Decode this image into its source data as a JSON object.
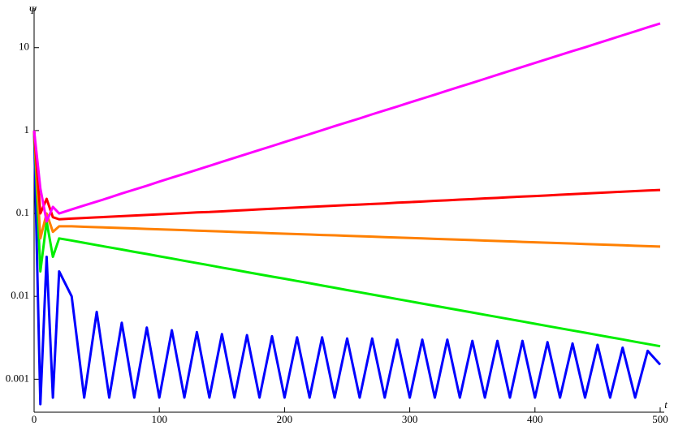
{
  "chart_data": {
    "type": "line",
    "y_label": "Ψ",
    "x_label": "t",
    "log_y": true,
    "xlim": [
      0,
      500
    ],
    "ylim": [
      0.0004,
      30
    ],
    "xticks": [
      0,
      100,
      200,
      300,
      400,
      500
    ],
    "yticks": [
      0.001,
      0.01,
      0.1,
      1,
      10
    ],
    "x": [
      0,
      5,
      10,
      15,
      20,
      30,
      40,
      50,
      60,
      70,
      80,
      90,
      100,
      110,
      120,
      130,
      140,
      150,
      160,
      170,
      180,
      190,
      200,
      210,
      220,
      230,
      240,
      250,
      260,
      270,
      280,
      290,
      300,
      310,
      320,
      330,
      340,
      350,
      360,
      370,
      380,
      390,
      400,
      410,
      420,
      430,
      440,
      450,
      460,
      470,
      480,
      490,
      500
    ],
    "series": [
      {
        "color": "#0000ff",
        "values": [
          1,
          0.0005,
          0.03,
          0.0006,
          0.02,
          0.01,
          0.0006,
          0.0065,
          0.0006,
          0.0048,
          0.0006,
          0.0042,
          0.0006,
          0.0039,
          0.0006,
          0.0037,
          0.0006,
          0.0035,
          0.0006,
          0.0034,
          0.0006,
          0.0033,
          0.0006,
          0.0032,
          0.0006,
          0.0032,
          0.0006,
          0.0031,
          0.0006,
          0.0031,
          0.0006,
          0.003,
          0.0006,
          0.003,
          0.0006,
          0.003,
          0.0006,
          0.0029,
          0.0006,
          0.0029,
          0.0006,
          0.0029,
          0.0006,
          0.0028,
          0.0006,
          0.0027,
          0.0006,
          0.0026,
          0.0006,
          0.0024,
          0.0006,
          0.0022,
          0.0015
        ]
      },
      {
        "color": "#00ee00",
        "values": [
          1,
          0.02,
          0.08,
          0.03,
          0.05,
          0.0471,
          0.0442,
          0.0415,
          0.039,
          0.0367,
          0.0344,
          0.0324,
          0.0304,
          0.0286,
          0.0268,
          0.0252,
          0.0237,
          0.0222,
          0.0209,
          0.0196,
          0.0184,
          0.0173,
          0.0163,
          0.0153,
          0.0144,
          0.0135,
          0.0127,
          0.0119,
          0.0112,
          0.0105,
          0.00987,
          0.00927,
          0.00871,
          0.00818,
          0.00769,
          0.00722,
          0.00679,
          0.00638,
          0.00599,
          0.00563,
          0.00529,
          0.00497,
          0.00467,
          0.00438,
          0.00412,
          0.00387,
          0.00364,
          0.00342,
          0.00321,
          0.00302,
          0.00283,
          0.00266,
          0.0025
        ]
      },
      {
        "color": "#ff8000",
        "values": [
          1,
          0.05,
          0.1,
          0.06,
          0.07,
          0.07,
          0.0691,
          0.0683,
          0.0675,
          0.0667,
          0.0659,
          0.0651,
          0.0643,
          0.0636,
          0.0628,
          0.062,
          0.0613,
          0.0606,
          0.0598,
          0.0591,
          0.0584,
          0.0577,
          0.057,
          0.0564,
          0.0557,
          0.055,
          0.0544,
          0.0537,
          0.0531,
          0.0525,
          0.0518,
          0.0512,
          0.0506,
          0.05,
          0.0494,
          0.0488,
          0.0482,
          0.0477,
          0.0471,
          0.0465,
          0.046,
          0.0454,
          0.0449,
          0.0444,
          0.0438,
          0.0433,
          0.0428,
          0.0423,
          0.0418,
          0.0413,
          0.0408,
          0.0403,
          0.0398
        ]
      },
      {
        "color": "#ff0000",
        "values": [
          1,
          0.1,
          0.15,
          0.09,
          0.085,
          0.0866,
          0.0881,
          0.0896,
          0.0911,
          0.0927,
          0.0943,
          0.0959,
          0.0975,
          0.0992,
          0.101,
          0.103,
          0.104,
          0.106,
          0.108,
          0.11,
          0.112,
          0.114,
          0.116,
          0.118,
          0.12,
          0.122,
          0.124,
          0.126,
          0.128,
          0.13,
          0.132,
          0.135,
          0.137,
          0.139,
          0.142,
          0.144,
          0.147,
          0.149,
          0.152,
          0.154,
          0.157,
          0.16,
          0.162,
          0.165,
          0.168,
          0.171,
          0.174,
          0.177,
          0.18,
          0.183,
          0.186,
          0.189,
          0.192
        ]
      },
      {
        "color": "#ff00ff",
        "values": [
          1,
          0.2,
          0.08,
          0.12,
          0.1,
          0.112,
          0.125,
          0.139,
          0.155,
          0.174,
          0.194,
          0.216,
          0.242,
          0.27,
          0.301,
          0.336,
          0.375,
          0.419,
          0.468,
          0.522,
          0.583,
          0.65,
          0.726,
          0.81,
          0.904,
          1.01,
          1.13,
          1.26,
          1.4,
          1.57,
          1.75,
          1.95,
          2.18,
          2.43,
          2.71,
          3.03,
          3.38,
          3.77,
          4.21,
          4.7,
          5.25,
          5.86,
          6.54,
          7.3,
          8.15,
          9.09,
          10.1,
          11.3,
          12.6,
          14.1,
          15.7,
          17.6,
          19.6
        ]
      }
    ]
  }
}
